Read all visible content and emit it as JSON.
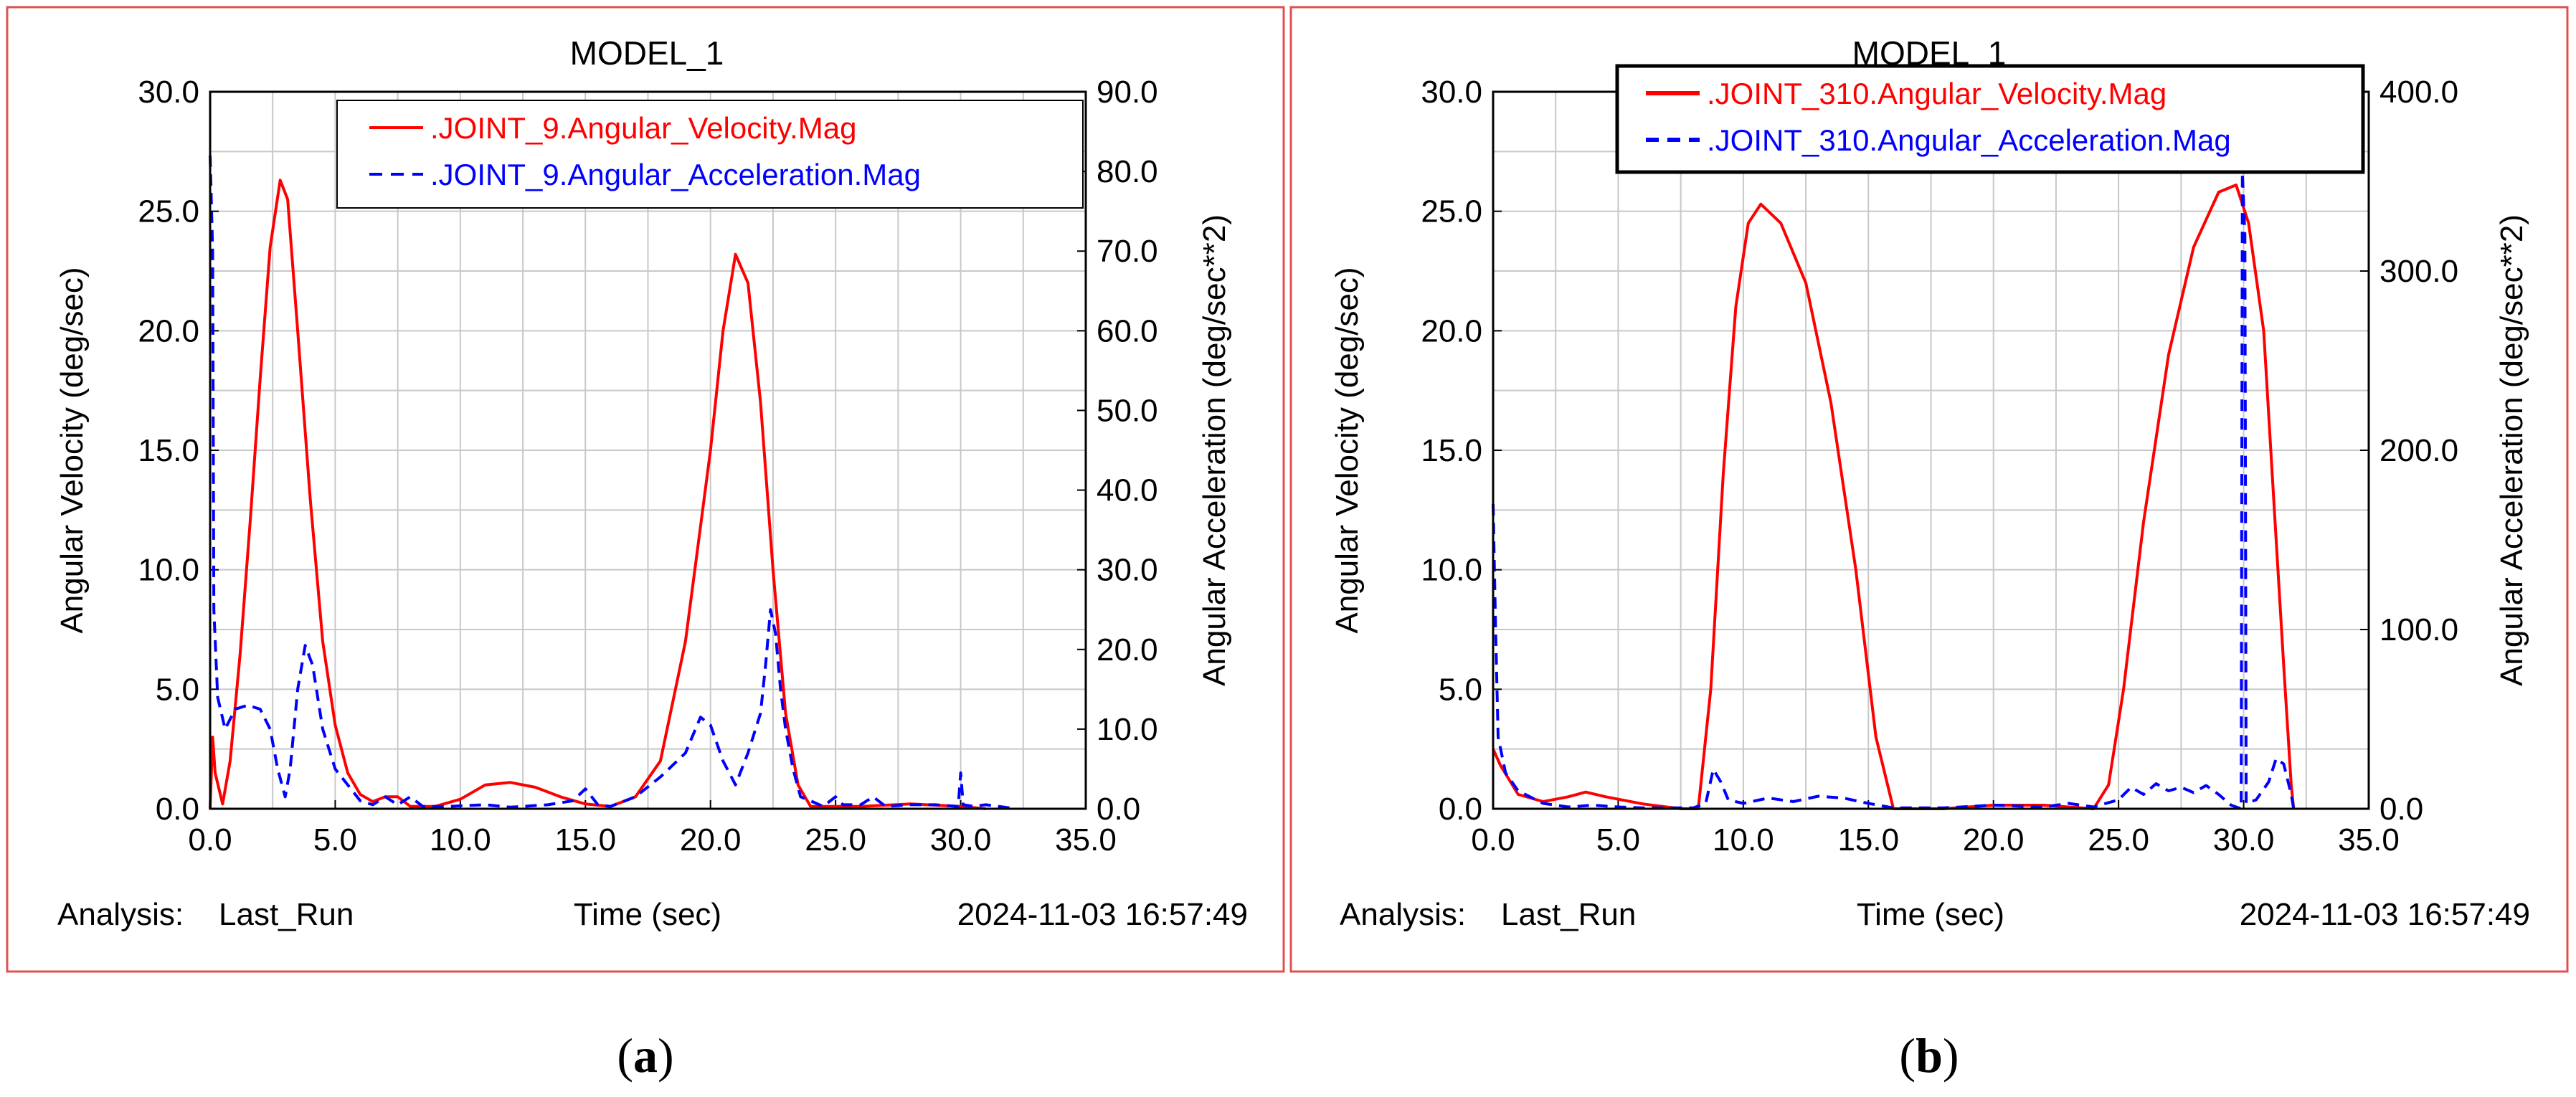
{
  "figure": {
    "caption_a": "(a)",
    "caption_a_letter": "a",
    "caption_b": "(b)",
    "caption_b_letter": "b"
  },
  "chart_data": [
    {
      "type": "line",
      "panel_label": "a",
      "title": "MODEL_1",
      "xlabel": "Time (sec)",
      "ylabel": "Angular Velocity (deg/sec)",
      "y2label": "Angular Acceleration (deg/sec**2)",
      "xlim": [
        0,
        35
      ],
      "ylim": [
        0,
        30
      ],
      "y2lim": [
        0,
        90
      ],
      "x_ticks": [
        0,
        5,
        10,
        15,
        20,
        25,
        30,
        35
      ],
      "x_tick_labels": [
        "0.0",
        "5.0",
        "10.0",
        "15.0",
        "20.0",
        "25.0",
        "30.0",
        "35.0"
      ],
      "y_ticks": [
        0,
        5,
        10,
        15,
        20,
        25,
        30
      ],
      "y_tick_labels": [
        "0.0",
        "5.0",
        "10.0",
        "15.0",
        "20.0",
        "25.0",
        "30.0"
      ],
      "y2_ticks": [
        0,
        10,
        20,
        30,
        40,
        50,
        60,
        70,
        80,
        90
      ],
      "y2_tick_labels": [
        "0.0",
        "10.0",
        "20.0",
        "30.0",
        "40.0",
        "50.0",
        "60.0",
        "70.0",
        "80.0",
        "90.0"
      ],
      "grid": true,
      "legend_position": "top-right",
      "analysis_label": "Analysis:",
      "analysis_value": "Last_Run",
      "timestamp": "2024-11-03 16:57:49",
      "series": [
        {
          "name": ".JOINT_9.Angular_Velocity.Mag",
          "axis": "left",
          "color": "#ff0000",
          "style": "solid",
          "points": [
            [
              0,
              0
            ],
            [
              0.1,
              3.0
            ],
            [
              0.2,
              1.5
            ],
            [
              0.5,
              0.2
            ],
            [
              0.8,
              2.0
            ],
            [
              1.2,
              6.5
            ],
            [
              1.6,
              12.0
            ],
            [
              2.0,
              18.0
            ],
            [
              2.4,
              23.5
            ],
            [
              2.8,
              26.3
            ],
            [
              3.1,
              25.5
            ],
            [
              3.5,
              20.0
            ],
            [
              4.0,
              13.0
            ],
            [
              4.5,
              7.0
            ],
            [
              5.0,
              3.5
            ],
            [
              5.5,
              1.5
            ],
            [
              6.0,
              0.6
            ],
            [
              6.5,
              0.3
            ],
            [
              7.0,
              0.5
            ],
            [
              7.5,
              0.5
            ],
            [
              8.0,
              0.1
            ],
            [
              9.0,
              0.1
            ],
            [
              10.0,
              0.4
            ],
            [
              11.0,
              1.0
            ],
            [
              12.0,
              1.1
            ],
            [
              13.0,
              0.9
            ],
            [
              14.0,
              0.5
            ],
            [
              15.0,
              0.2
            ],
            [
              16.0,
              0.1
            ],
            [
              17.0,
              0.5
            ],
            [
              18.0,
              2.0
            ],
            [
              19.0,
              7.0
            ],
            [
              20.0,
              15.0
            ],
            [
              20.5,
              20.0
            ],
            [
              21.0,
              23.2
            ],
            [
              21.5,
              22.0
            ],
            [
              22.0,
              17.0
            ],
            [
              22.5,
              10.0
            ],
            [
              23.0,
              4.0
            ],
            [
              23.5,
              1.0
            ],
            [
              24.0,
              0.1
            ],
            [
              26.0,
              0.1
            ],
            [
              28.0,
              0.2
            ],
            [
              30.0,
              0.1
            ],
            [
              31.0,
              0.0
            ]
          ]
        },
        {
          "name": ".JOINT_9.Angular_Acceleration.Mag",
          "axis": "right",
          "color": "#0000ff",
          "style": "dashed",
          "points": [
            [
              0,
              82
            ],
            [
              0.1,
              70
            ],
            [
              0.15,
              25
            ],
            [
              0.3,
              14
            ],
            [
              0.6,
              10
            ],
            [
              1.0,
              12.5
            ],
            [
              1.5,
              13.0
            ],
            [
              2.0,
              12.5
            ],
            [
              2.4,
              10
            ],
            [
              2.7,
              5
            ],
            [
              3.0,
              1.5
            ],
            [
              3.2,
              5
            ],
            [
              3.5,
              15
            ],
            [
              3.8,
              20.5
            ],
            [
              4.1,
              18
            ],
            [
              4.5,
              10
            ],
            [
              5.0,
              5
            ],
            [
              5.5,
              3
            ],
            [
              6.0,
              1
            ],
            [
              6.5,
              0.5
            ],
            [
              7.0,
              1.5
            ],
            [
              7.5,
              0.5
            ],
            [
              8.0,
              1.5
            ],
            [
              8.5,
              0.3
            ],
            [
              9.5,
              0.3
            ],
            [
              11.0,
              0.5
            ],
            [
              12.0,
              0.2
            ],
            [
              13.5,
              0.5
            ],
            [
              14.5,
              1.0
            ],
            [
              15.0,
              2.5
            ],
            [
              15.5,
              0.5
            ],
            [
              16.0,
              0.3
            ],
            [
              17.0,
              1.5
            ],
            [
              18.0,
              4.0
            ],
            [
              19.0,
              7.0
            ],
            [
              19.6,
              11.5
            ],
            [
              20.0,
              10.5
            ],
            [
              20.5,
              6
            ],
            [
              21.0,
              3
            ],
            [
              21.5,
              7
            ],
            [
              22.0,
              12
            ],
            [
              22.2,
              18
            ],
            [
              22.4,
              25
            ],
            [
              22.6,
              22
            ],
            [
              22.8,
              15
            ],
            [
              23.0,
              10
            ],
            [
              23.3,
              5
            ],
            [
              23.6,
              1.5
            ],
            [
              24.0,
              1.0
            ],
            [
              24.5,
              0.3
            ],
            [
              25.0,
              1.5
            ],
            [
              25.3,
              0.5
            ],
            [
              26.0,
              0.5
            ],
            [
              26.5,
              1.5
            ],
            [
              27.0,
              0.3
            ],
            [
              28.0,
              0.5
            ],
            [
              29.0,
              0.5
            ],
            [
              29.9,
              0.3
            ],
            [
              30.0,
              4.5
            ],
            [
              30.1,
              0.5
            ],
            [
              30.5,
              0.3
            ],
            [
              31.0,
              0.5
            ],
            [
              32.0,
              0.1
            ]
          ]
        }
      ]
    },
    {
      "type": "line",
      "panel_label": "b",
      "title": "MODEL_1",
      "xlabel": "Time (sec)",
      "ylabel": "Angular Velocity (deg/sec)",
      "y2label": "Angular Acceleration (deg/sec**2)",
      "xlim": [
        0,
        35
      ],
      "ylim": [
        0,
        30
      ],
      "y2lim": [
        0,
        400
      ],
      "x_ticks": [
        0,
        5,
        10,
        15,
        20,
        25,
        30,
        35
      ],
      "x_tick_labels": [
        "0.0",
        "5.0",
        "10.0",
        "15.0",
        "20.0",
        "25.0",
        "30.0",
        "35.0"
      ],
      "y_ticks": [
        0,
        5,
        10,
        15,
        20,
        25,
        30
      ],
      "y_tick_labels": [
        "0.0",
        "5.0",
        "10.0",
        "15.0",
        "20.0",
        "25.0",
        "30.0"
      ],
      "y2_ticks": [
        0,
        100,
        200,
        300,
        400
      ],
      "y2_tick_labels": [
        "0.0",
        "100.0",
        "200.0",
        "300.0",
        "400.0"
      ],
      "grid": true,
      "legend_position": "top-right",
      "analysis_label": "Analysis:",
      "analysis_value": "Last_Run",
      "timestamp": "2024-11-03 16:57:49",
      "series": [
        {
          "name": ".JOINT_310.Angular_Velocity.Mag",
          "axis": "left",
          "color": "#ff0000",
          "style": "solid",
          "points": [
            [
              0,
              2.5
            ],
            [
              0.3,
              1.8
            ],
            [
              1.0,
              0.6
            ],
            [
              2.0,
              0.3
            ],
            [
              3.0,
              0.5
            ],
            [
              3.7,
              0.7
            ],
            [
              4.5,
              0.5
            ],
            [
              6.0,
              0.2
            ],
            [
              7.5,
              0.0
            ],
            [
              8.2,
              0.0
            ],
            [
              8.7,
              5.0
            ],
            [
              9.2,
              14.0
            ],
            [
              9.7,
              21.0
            ],
            [
              10.2,
              24.5
            ],
            [
              10.7,
              25.3
            ],
            [
              11.5,
              24.5
            ],
            [
              12.5,
              22.0
            ],
            [
              13.5,
              17.0
            ],
            [
              14.5,
              10.0
            ],
            [
              15.3,
              3.0
            ],
            [
              16.0,
              0.0
            ],
            [
              18.0,
              0.0
            ],
            [
              20.0,
              0.15
            ],
            [
              22.0,
              0.15
            ],
            [
              24.0,
              0.0
            ],
            [
              24.6,
              1.0
            ],
            [
              25.2,
              5.0
            ],
            [
              26.0,
              12.0
            ],
            [
              27.0,
              19.0
            ],
            [
              28.0,
              23.5
            ],
            [
              29.0,
              25.8
            ],
            [
              29.7,
              26.1
            ],
            [
              30.2,
              24.5
            ],
            [
              30.8,
              20.0
            ],
            [
              31.2,
              13.0
            ],
            [
              31.6,
              6.0
            ],
            [
              31.9,
              1.0
            ],
            [
              32.0,
              0.0
            ]
          ]
        },
        {
          "name": ".JOINT_310.Angular_Acceleration.Mag",
          "axis": "right",
          "color": "#0000ff",
          "style": "dashed",
          "points": [
            [
              0,
              170
            ],
            [
              0.1,
              100
            ],
            [
              0.2,
              40
            ],
            [
              0.5,
              20
            ],
            [
              1.0,
              10
            ],
            [
              2.0,
              3
            ],
            [
              3.0,
              1
            ],
            [
              4.0,
              2
            ],
            [
              5.0,
              1
            ],
            [
              6.0,
              0.5
            ],
            [
              7.0,
              0.5
            ],
            [
              8.0,
              0.5
            ],
            [
              8.5,
              3
            ],
            [
              8.8,
              22
            ],
            [
              9.1,
              15
            ],
            [
              9.4,
              5
            ],
            [
              10.0,
              3
            ],
            [
              11.0,
              6
            ],
            [
              12.0,
              4
            ],
            [
              13.0,
              7
            ],
            [
              14.0,
              6
            ],
            [
              15.0,
              3
            ],
            [
              16.0,
              0.5
            ],
            [
              18.0,
              0.5
            ],
            [
              20.0,
              2
            ],
            [
              22.0,
              1
            ],
            [
              23.0,
              3
            ],
            [
              24.0,
              1
            ],
            [
              25.0,
              5
            ],
            [
              25.5,
              12
            ],
            [
              26.0,
              8
            ],
            [
              26.5,
              14
            ],
            [
              27.0,
              10
            ],
            [
              27.5,
              12
            ],
            [
              28.0,
              9
            ],
            [
              28.5,
              13
            ],
            [
              29.0,
              8
            ],
            [
              29.5,
              2
            ],
            [
              29.9,
              0
            ],
            [
              29.95,
              355
            ],
            [
              30.05,
              320
            ],
            [
              30.1,
              3
            ],
            [
              30.5,
              5
            ],
            [
              31.0,
              15
            ],
            [
              31.3,
              28
            ],
            [
              31.6,
              25
            ],
            [
              31.9,
              8
            ],
            [
              32.0,
              0
            ]
          ]
        }
      ]
    }
  ]
}
